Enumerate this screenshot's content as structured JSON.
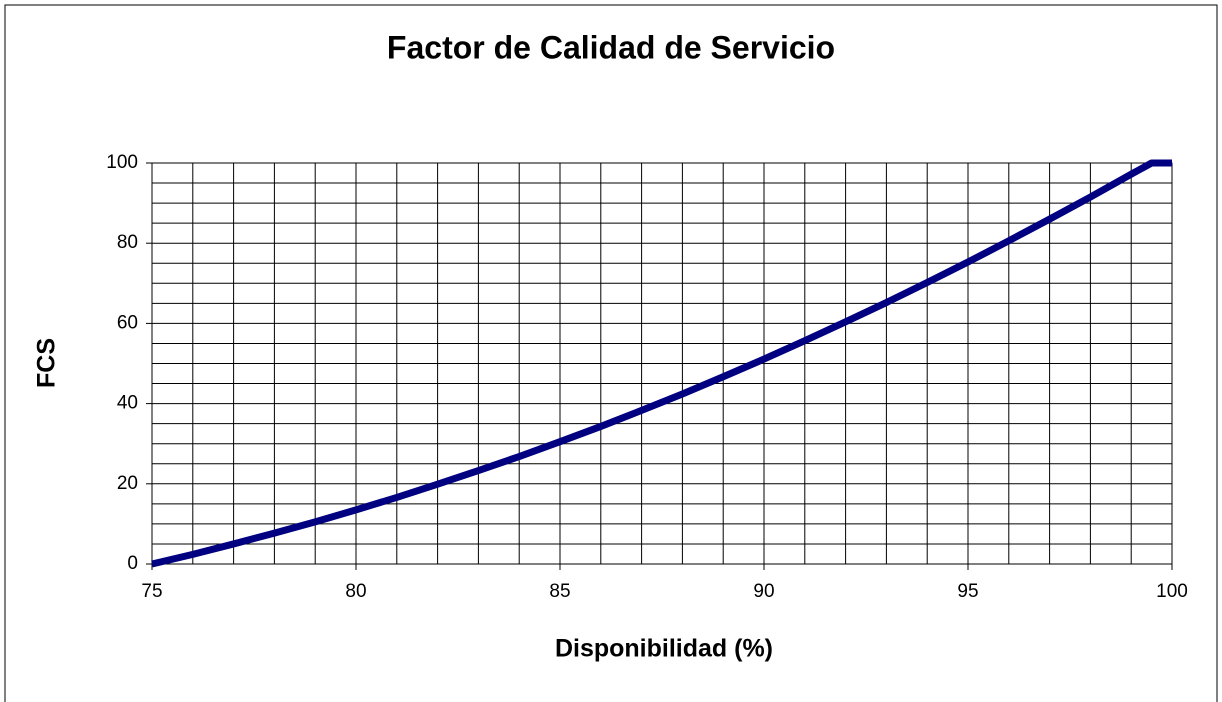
{
  "chart_data": {
    "type": "line",
    "title": "Factor de Calidad de Servicio",
    "xlabel": "Disponibilidad (%)",
    "ylabel": "FCS",
    "x": [
      75,
      76,
      77,
      78,
      79,
      80,
      81,
      82,
      83,
      84,
      85,
      86,
      87,
      88,
      89,
      90,
      91,
      92,
      93,
      94,
      95,
      96,
      97,
      98,
      99,
      99.5,
      100
    ],
    "series": [
      {
        "name": "FCS",
        "color": "#000080",
        "values": [
          0,
          2.4,
          5,
          7.7,
          10.5,
          13.5,
          16.6,
          19.9,
          23.3,
          26.8,
          30.5,
          34.3,
          38.3,
          42.4,
          46.7,
          51.1,
          55.7,
          60.4,
          65.2,
          70.2,
          75.3,
          80.6,
          86,
          91.5,
          97.2,
          100,
          100
        ]
      }
    ],
    "xlim": [
      75,
      100
    ],
    "ylim": [
      0,
      100
    ],
    "xticks": [
      75,
      80,
      85,
      90,
      95,
      100
    ],
    "yticks": [
      0,
      20,
      40,
      60,
      80,
      100
    ],
    "xgrid": [
      75,
      76,
      77,
      78,
      79,
      80,
      81,
      82,
      83,
      84,
      85,
      86,
      87,
      88,
      89,
      90,
      91,
      92,
      93,
      94,
      95,
      96,
      97,
      98,
      99,
      100
    ],
    "ygrid": [
      0,
      5,
      10,
      15,
      20,
      25,
      30,
      35,
      40,
      45,
      50,
      55,
      60,
      65,
      70,
      75,
      80,
      85,
      90,
      95,
      100
    ],
    "grid": true
  }
}
